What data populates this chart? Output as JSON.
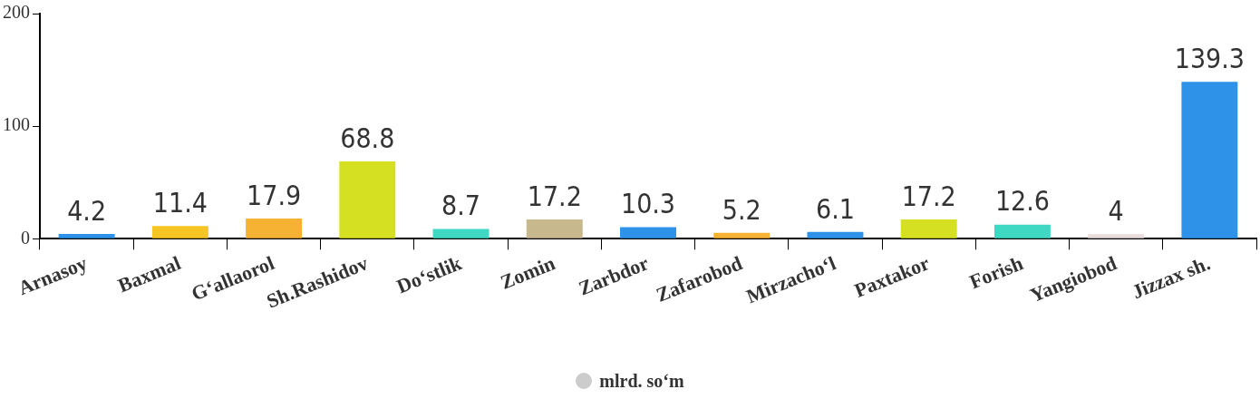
{
  "chart_data": {
    "type": "bar",
    "categories": [
      "Arnasoy",
      "Baxmal",
      "G‘allaorol",
      "Sh.Rashidov",
      "Do‘stlik",
      "Zomin",
      "Zarbdor",
      "Zafarobod",
      "Mirzacho‘l",
      "Paxtakor",
      "Forish",
      "Yangiobod",
      "Jizzax sh."
    ],
    "series": [
      {
        "name": "mlrd. so‘m",
        "color": "#cccccc",
        "colors": [
          "#2e93e8",
          "#f5c623",
          "#f6b333",
          "#d4e021",
          "#3fd8c3",
          "#c7b98d",
          "#2e93e8",
          "#f6b333",
          "#2e93e8",
          "#d4e021",
          "#3fd8c3",
          "#e8dcdc",
          "#2e93e8"
        ],
        "values": [
          4.2,
          11.4,
          17.9,
          68.8,
          8.7,
          17.2,
          10.3,
          5.2,
          6.1,
          17.2,
          12.6,
          4,
          139.3
        ]
      }
    ],
    "ylim": [
      0,
      200
    ],
    "yticks": [
      0,
      100,
      200
    ],
    "data_labels": true,
    "legend": "bottom"
  }
}
